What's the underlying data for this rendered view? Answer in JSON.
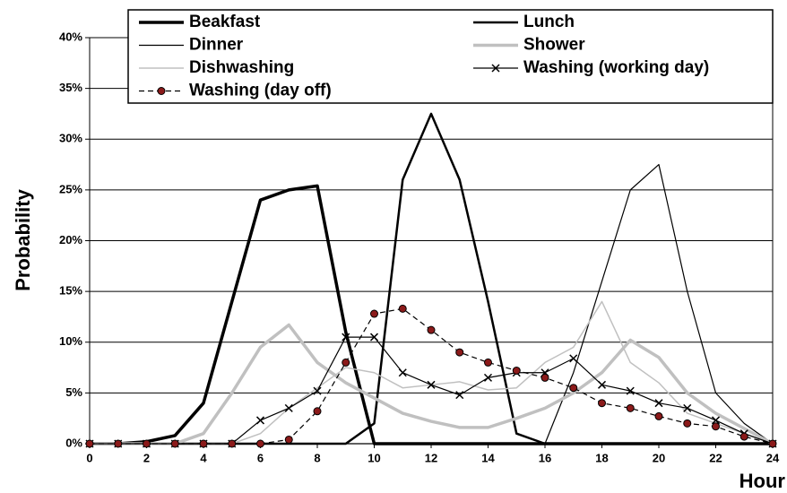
{
  "chart_data": {
    "type": "line",
    "y_label": "Probability",
    "x_label": "Hour",
    "x": [
      0,
      1,
      2,
      3,
      4,
      5,
      6,
      7,
      8,
      9,
      10,
      11,
      12,
      13,
      14,
      15,
      16,
      17,
      18,
      19,
      20,
      21,
      22,
      23,
      24
    ],
    "xlim": [
      0,
      24
    ],
    "xticks": [
      0,
      2,
      4,
      6,
      8,
      10,
      12,
      14,
      16,
      18,
      20,
      22,
      24
    ],
    "ylim": [
      0,
      40
    ],
    "yticks": [
      {
        "value": 0,
        "label": "0%"
      },
      {
        "value": 5,
        "label": "5%"
      },
      {
        "value": 10,
        "label": "10%"
      },
      {
        "value": 15,
        "label": "15%"
      },
      {
        "value": 20,
        "label": "20%"
      },
      {
        "value": 25,
        "label": "25%"
      },
      {
        "value": 30,
        "label": "30%"
      },
      {
        "value": 35,
        "label": "35%"
      },
      {
        "value": 40,
        "label": "40%"
      }
    ],
    "grid": true,
    "series": [
      {
        "name": "Beakfast",
        "color": "#000000",
        "line_width": 3.5,
        "values": [
          0,
          0,
          0.2,
          0.8,
          4,
          14,
          24,
          25,
          25.4,
          11,
          0,
          0,
          0,
          0,
          0,
          0,
          0,
          0,
          0,
          0,
          0,
          0,
          0,
          0,
          0
        ]
      },
      {
        "name": "Lunch",
        "color": "#000000",
        "line_width": 2.5,
        "values": [
          0,
          0,
          0,
          0,
          0,
          0,
          0,
          0,
          0,
          0,
          2,
          26,
          32.5,
          26,
          14,
          1,
          0,
          0,
          0,
          0,
          0,
          0,
          0,
          0,
          0
        ]
      },
      {
        "name": "Dinner",
        "color": "#000000",
        "line_width": 1.2,
        "values": [
          0,
          0,
          0,
          0,
          0,
          0,
          0,
          0,
          0,
          0,
          0,
          0,
          0,
          0,
          0,
          0,
          0,
          7,
          16,
          25,
          27.5,
          15,
          5,
          2,
          0
        ]
      },
      {
        "name": "Shower",
        "color": "#c0c0c0",
        "line_width": 3.5,
        "values": [
          0,
          0,
          0,
          0,
          1,
          5,
          9.5,
          11.7,
          8,
          6,
          4.5,
          3,
          2.2,
          1.6,
          1.6,
          2.5,
          3.5,
          5,
          7,
          10.2,
          8.5,
          5,
          3,
          1.5,
          0
        ]
      },
      {
        "name": "Dishwashing",
        "color": "#c0c0c0",
        "line_width": 1.5,
        "values": [
          0,
          0,
          0,
          0,
          0,
          0,
          1,
          3.5,
          5.5,
          7.5,
          7,
          5.5,
          5.8,
          6.1,
          5.3,
          5.5,
          8,
          9.5,
          14,
          8,
          6,
          3,
          2,
          1,
          0
        ]
      },
      {
        "name": "Washing (working day)",
        "color": "#000000",
        "line_width": 1.2,
        "marker": "x",
        "values": [
          0,
          0,
          0,
          0,
          0,
          0,
          2.3,
          3.5,
          5.2,
          10.5,
          10.5,
          7,
          5.8,
          4.8,
          6.5,
          7,
          7,
          8.4,
          5.8,
          5.2,
          4,
          3.5,
          2.3,
          1,
          0
        ]
      },
      {
        "name": "Washing (day off)",
        "color": "#000000",
        "line_width": 1.2,
        "marker": "circle",
        "marker_color": "#8b1a1a",
        "dashed": true,
        "values": [
          0,
          0,
          0,
          0,
          0,
          0,
          0,
          0.4,
          3.2,
          8,
          12.8,
          13.3,
          11.2,
          9,
          8,
          7.2,
          6.5,
          5.5,
          4,
          3.5,
          2.7,
          2,
          1.7,
          0.7,
          0
        ]
      }
    ]
  }
}
